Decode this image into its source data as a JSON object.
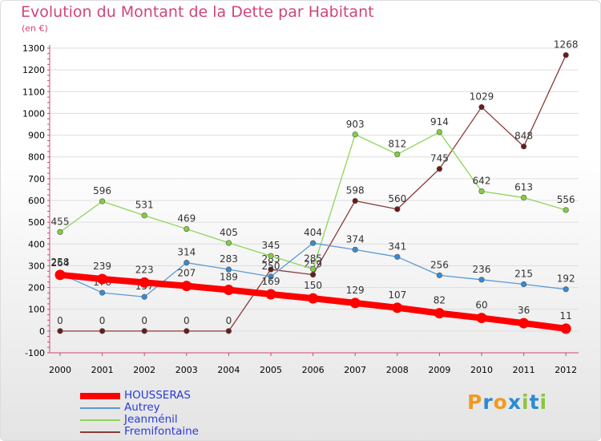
{
  "title": "Evolution du Montant de la Dette par Habitant",
  "subtitle": "(en €)",
  "logo": {
    "text": "Proxiti",
    "letter_colors": [
      "#f29a1f",
      "#2a8bd4",
      "#f29a1f",
      "#2a8bd4",
      "#8cc63f",
      "#2a8bd4",
      "#8cc63f"
    ]
  },
  "colors": {
    "title": "#d2447a",
    "axis": "#d2447a",
    "grid": "#dddddd",
    "tick_text": "#000000",
    "label_text": "#333333"
  },
  "chart_data": {
    "type": "line",
    "x": [
      "2000",
      "2001",
      "2002",
      "2003",
      "2004",
      "2005",
      "2006",
      "2007",
      "2008",
      "2009",
      "2010",
      "2011",
      "2012"
    ],
    "ylim": [
      -100,
      1300
    ],
    "yticks": [
      -100,
      0,
      100,
      200,
      300,
      400,
      500,
      600,
      700,
      800,
      900,
      1000,
      1100,
      1200,
      1300
    ],
    "grid": "horizontal",
    "legend_position": "bottom-left",
    "series": [
      {
        "name": "Fremifontaine",
        "color": "#6b1a1a",
        "line_color": "#8b3a3a",
        "values": [
          0,
          0,
          0,
          0,
          0,
          283,
          259,
          598,
          560,
          745,
          1029,
          848,
          1268
        ]
      },
      {
        "name": "Jeanménil",
        "color": "#80d040",
        "line_color": "#90d45a",
        "values": [
          455,
          596,
          531,
          469,
          405,
          345,
          285,
          903,
          812,
          914,
          642,
          613,
          556
        ]
      },
      {
        "name": "Autrey",
        "color": "#3a8ad0",
        "line_color": "#5a9ad4",
        "values": [
          264,
          176,
          157,
          314,
          283,
          250,
          404,
          374,
          341,
          256,
          236,
          215,
          192
        ]
      },
      {
        "name": "HOUSSERAS",
        "color": "#ff0000",
        "line_color": "#ff0000",
        "values": [
          258,
          239,
          223,
          207,
          189,
          169,
          150,
          129,
          107,
          82,
          60,
          36,
          11
        ]
      }
    ],
    "legend_order": [
      "HOUSSERAS",
      "Autrey",
      "Jeanménil",
      "Fremifontaine"
    ]
  }
}
